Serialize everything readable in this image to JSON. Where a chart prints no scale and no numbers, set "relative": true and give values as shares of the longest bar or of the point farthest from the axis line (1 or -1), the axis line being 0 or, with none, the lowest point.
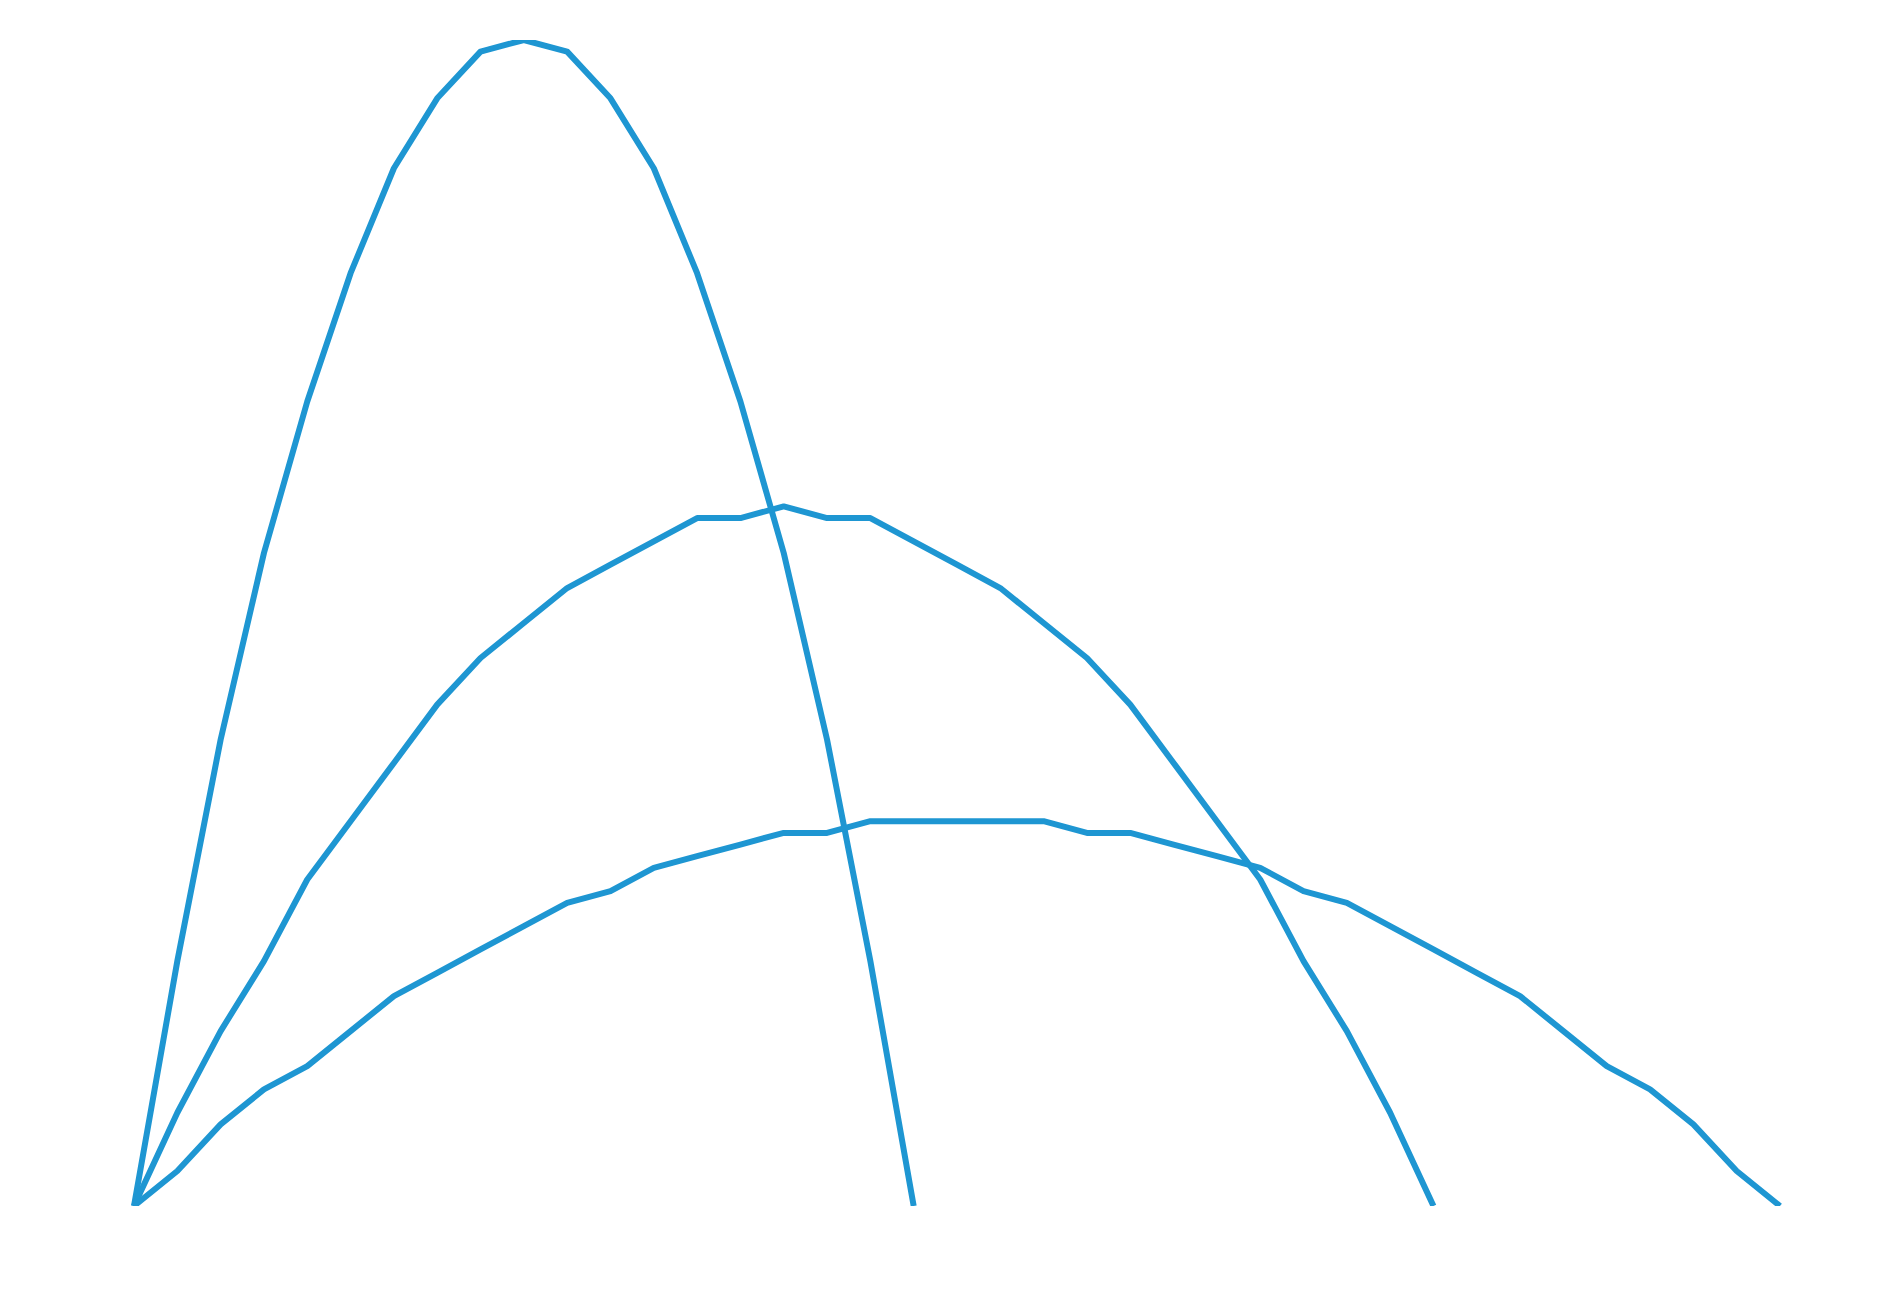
{
  "chart_data": {
    "type": "line",
    "relative": true,
    "categories": [
      null,
      null,
      null,
      null,
      null,
      null,
      null,
      null,
      null,
      null,
      null,
      null,
      null,
      null,
      null,
      null,
      null,
      null,
      null,
      null,
      null,
      null,
      null,
      null,
      null,
      null,
      null,
      null,
      null,
      null,
      null,
      null,
      null,
      null,
      null,
      null,
      null,
      null,
      null
    ],
    "series": [
      {
        "color": "#1e96d2",
        "values": [
          0,
          0.21,
          0.4,
          0.56,
          0.69,
          0.8,
          0.89,
          0.95,
          0.99,
          1,
          0.99,
          0.95,
          0.89,
          0.8,
          0.69,
          0.56,
          0.4,
          0.21,
          0,
          null,
          null,
          null,
          null,
          null,
          null,
          null,
          null,
          null,
          null,
          null,
          null,
          null,
          null,
          null,
          null,
          null,
          null,
          null,
          null
        ]
      },
      {
        "color": "#1e96d2",
        "values": [
          0,
          0.08,
          0.15,
          0.21,
          0.28,
          0.33,
          0.38,
          0.43,
          0.47,
          0.5,
          0.53,
          0.55,
          0.57,
          0.59,
          0.59,
          0.6,
          0.59,
          0.59,
          0.57,
          0.55,
          0.53,
          0.5,
          0.47,
          0.43,
          0.38,
          0.33,
          0.28,
          0.21,
          0.15,
          0.08,
          0,
          null,
          null,
          null,
          null,
          null,
          null,
          null,
          null
        ]
      },
      {
        "color": "#1e96d2",
        "values": [
          0,
          0.03,
          0.07,
          0.1,
          0.12,
          0.15,
          0.18,
          0.2,
          0.22,
          0.24,
          0.26,
          0.27,
          0.29,
          0.3,
          0.31,
          0.32,
          0.32,
          0.33,
          0.33,
          0.33,
          0.33,
          0.33,
          0.32,
          0.32,
          0.31,
          0.3,
          0.29,
          0.27,
          0.26,
          0.24,
          0.22,
          0.2,
          0.18,
          0.15,
          0.12,
          0.1,
          0.07,
          0.03,
          0
        ]
      }
    ]
  }
}
